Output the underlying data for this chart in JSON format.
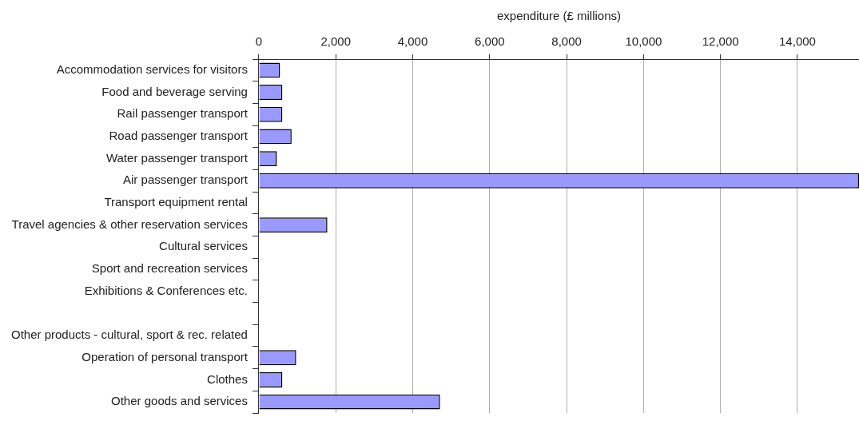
{
  "chart_data": {
    "type": "bar",
    "orientation": "horizontal",
    "xlabel": "expenditure (£ millions)",
    "categories": [
      "Accommodation services for visitors",
      "Food and beverage serving",
      "Rail passenger transport",
      "Road passenger transport",
      "Water passenger transport",
      "Air passenger transport",
      "Transport equipment rental",
      "Travel agencies & other reservation services",
      "Cultural services",
      "Sport and recreation services",
      "Exhibitions & Conferences etc.",
      null,
      "Other products - cultural, sport & rec. related",
      "Operation of personal transport",
      "Clothes",
      "Other goods and services"
    ],
    "values": [
      550,
      610,
      610,
      850,
      470,
      15600,
      0,
      1780,
      0,
      0,
      0,
      null,
      0,
      970,
      610,
      4710
    ],
    "color": "#9999ff",
    "xlim": [
      0,
      15600
    ],
    "xticks": [
      {
        "value": 0,
        "label": "0"
      },
      {
        "value": 2000,
        "label": "2,000"
      },
      {
        "value": 4000,
        "label": "4,000"
      },
      {
        "value": 6000,
        "label": "6,000"
      },
      {
        "value": 8000,
        "label": "8,000"
      },
      {
        "value": 10000,
        "label": "10,000"
      },
      {
        "value": 12000,
        "label": "12,000"
      },
      {
        "value": 14000,
        "label": "14,000"
      }
    ],
    "grid": "x",
    "legend": false
  }
}
